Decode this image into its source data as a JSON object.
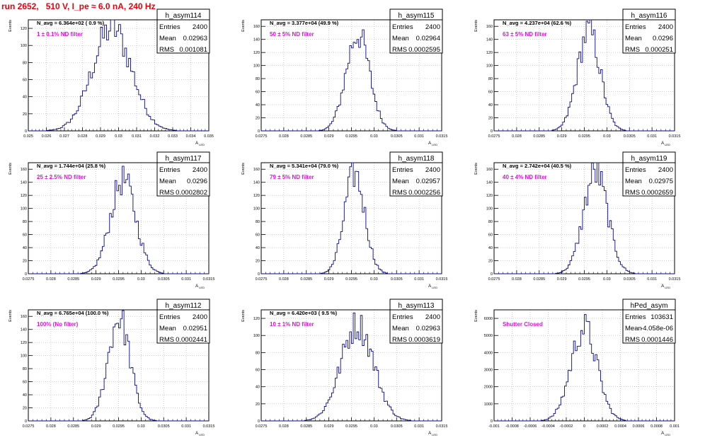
{
  "header": {
    "run_title": "run 2652,   510 V, I_pe ≈ 6.0 nA, 240 Hz"
  },
  "colors": {
    "histogram": "#08088a",
    "annotation": "#e010e0",
    "title_red": "#e8000b",
    "frame": "#000000",
    "grid": "#b0b0b0"
  },
  "stats_labels": {
    "entries": "Entries",
    "mean": "Mean",
    "rms": "RMS"
  },
  "chart_data": [
    {
      "type": "bar",
      "name": "h_asym114",
      "navg": "N_avg = 6.364e+02 ( 0.9 %)",
      "annotation": "1 ± 0.1% ND filter",
      "entries": "2400",
      "mean": "0.02963",
      "rms": "0.001081",
      "xlabel": "A_LED",
      "ylabel": "Events",
      "xlim": [
        0.025,
        0.035
      ],
      "ylim": [
        0,
        130
      ],
      "xticks": [
        0.025,
        0.026,
        0.027,
        0.028,
        0.029,
        0.03,
        0.031,
        0.032,
        0.033,
        0.034,
        0.035
      ],
      "xticklabels": [
        "0.025",
        "0.026",
        "0.027",
        "0.028",
        "0.029",
        "0.03",
        "0.031",
        "0.032",
        "0.033",
        "0.034",
        "0.035"
      ],
      "yticks": [
        0,
        20,
        40,
        60,
        80,
        100,
        120
      ],
      "yticklabels": [
        "0",
        "20",
        "40",
        "60",
        "80",
        "100",
        "120"
      ],
      "grid": true,
      "peak": 128,
      "mu": 0.02963,
      "sigma": 0.001081,
      "bins": 90
    },
    {
      "type": "bar",
      "name": "h_asym115",
      "navg": "N_avg = 3.377e+04 (49.9 %)",
      "annotation": "50 ± 5% ND filter",
      "entries": "2400",
      "mean": "0.02964",
      "rms": "0.0002595",
      "xlabel": "A_LED",
      "ylabel": "Events",
      "xlim": [
        0.0275,
        0.0315
      ],
      "ylim": [
        0,
        170
      ],
      "xticks": [
        0.0275,
        0.028,
        0.0285,
        0.029,
        0.0295,
        0.03,
        0.0305,
        0.031,
        0.0315
      ],
      "xticklabels": [
        "0.0275",
        "0.028",
        "0.0285",
        "0.029",
        "0.0295",
        "0.03",
        "0.0305",
        "0.031",
        "0.0315"
      ],
      "yticks": [
        0,
        20,
        40,
        60,
        80,
        100,
        120,
        140,
        160
      ],
      "yticklabels": [
        "0",
        "20",
        "40",
        "60",
        "80",
        "100",
        "120",
        "140",
        "160"
      ],
      "grid": true,
      "peak": 158,
      "mu": 0.02964,
      "sigma": 0.0002595,
      "bins": 100
    },
    {
      "type": "bar",
      "name": "h_asym116",
      "navg": "N_avg = 4.237e+04 (62.6 %)",
      "annotation": "63 ± 5% ND filter",
      "entries": "2400",
      "mean": "0.0296",
      "rms": "0.000251",
      "xlabel": "A_LED",
      "ylabel": "Events",
      "xlim": [
        0.0275,
        0.0315
      ],
      "ylim": [
        0,
        170
      ],
      "xticks": [
        0.0275,
        0.028,
        0.0285,
        0.029,
        0.0295,
        0.03,
        0.0305,
        0.031,
        0.0315
      ],
      "xticklabels": [
        "0.0275",
        "0.028",
        "0.0285",
        "0.029",
        "0.0295",
        "0.03",
        "0.0305",
        "0.031",
        "0.0315"
      ],
      "yticks": [
        0,
        20,
        40,
        60,
        80,
        100,
        120,
        140,
        160
      ],
      "yticklabels": [
        "0",
        "20",
        "40",
        "60",
        "80",
        "100",
        "120",
        "140",
        "160"
      ],
      "grid": true,
      "peak": 163,
      "mu": 0.0296,
      "sigma": 0.000251,
      "bins": 100
    },
    {
      "type": "bar",
      "name": "h_asym117",
      "navg": "N_avg = 1.744e+04 (25.8 %)",
      "annotation": "25 ± 2.5% ND filter",
      "entries": "2400",
      "mean": "0.0296",
      "rms": "0.0002802",
      "xlabel": "A_LED",
      "ylabel": "Events",
      "xlim": [
        0.0275,
        0.0315
      ],
      "ylim": [
        0,
        170
      ],
      "xticks": [
        0.0275,
        0.028,
        0.0285,
        0.029,
        0.0295,
        0.03,
        0.0305,
        0.031,
        0.0315
      ],
      "xticklabels": [
        "0.0275",
        "0.028",
        "0.0285",
        "0.029",
        "0.0295",
        "0.03",
        "0.0305",
        "0.031",
        "0.0315"
      ],
      "yticks": [
        0,
        20,
        40,
        60,
        80,
        100,
        120,
        140,
        160
      ],
      "yticklabels": [
        "0",
        "20",
        "40",
        "60",
        "80",
        "100",
        "120",
        "140",
        "160"
      ],
      "grid": true,
      "peak": 153,
      "mu": 0.0296,
      "sigma": 0.0002802,
      "bins": 100
    },
    {
      "type": "bar",
      "name": "h_asym118",
      "navg": "N_avg = 5.341e+04 (79.0 %)",
      "annotation": "79 ± 5% ND filter",
      "entries": "2400",
      "mean": "0.02957",
      "rms": "0.0002256",
      "xlabel": "A_LED",
      "ylabel": "Events",
      "xlim": [
        0.0275,
        0.0315
      ],
      "ylim": [
        0,
        170
      ],
      "xticks": [
        0.0275,
        0.028,
        0.0285,
        0.029,
        0.0295,
        0.03,
        0.0305,
        0.031,
        0.0315
      ],
      "xticklabels": [
        "0.0275",
        "0.028",
        "0.0285",
        "0.029",
        "0.0295",
        "0.03",
        "0.0305",
        "0.031",
        "0.0315"
      ],
      "yticks": [
        0,
        20,
        40,
        60,
        80,
        100,
        120,
        140,
        160
      ],
      "yticklabels": [
        "0",
        "20",
        "40",
        "60",
        "80",
        "100",
        "120",
        "140",
        "160"
      ],
      "grid": true,
      "peak": 163,
      "mu": 0.02957,
      "sigma": 0.0002256,
      "bins": 100
    },
    {
      "type": "bar",
      "name": "h_asym119",
      "navg": "N_avg = 2.742e+04 (40.5 %)",
      "annotation": "40 ± 4% ND filter",
      "entries": "2400",
      "mean": "0.02975",
      "rms": "0.0002659",
      "xlabel": "A_LED",
      "ylabel": "Events",
      "xlim": [
        0.0275,
        0.0315
      ],
      "ylim": [
        0,
        170
      ],
      "xticks": [
        0.0275,
        0.028,
        0.0285,
        0.029,
        0.0295,
        0.03,
        0.0305,
        0.031,
        0.0315
      ],
      "xticklabels": [
        "0.0275",
        "0.028",
        "0.0285",
        "0.029",
        "0.0295",
        "0.03",
        "0.0305",
        "0.031",
        "0.0315"
      ],
      "yticks": [
        0,
        20,
        40,
        60,
        80,
        100,
        120,
        140,
        160
      ],
      "yticklabels": [
        "0",
        "20",
        "40",
        "60",
        "80",
        "100",
        "120",
        "140",
        "160"
      ],
      "grid": true,
      "peak": 165,
      "mu": 0.02975,
      "sigma": 0.0002659,
      "bins": 100
    },
    {
      "type": "bar",
      "name": "h_asym112",
      "navg": "N_avg = 6.765e+04 (100.0 %)",
      "annotation": "100% (No filter)",
      "entries": "2400",
      "mean": "0.02951",
      "rms": "0.0002441",
      "xlabel": "A_LED",
      "ylabel": "Events",
      "xlim": [
        0.0275,
        0.0315
      ],
      "ylim": [
        0,
        170
      ],
      "xticks": [
        0.0275,
        0.028,
        0.0285,
        0.029,
        0.0295,
        0.03,
        0.0305,
        0.031,
        0.0315
      ],
      "xticklabels": [
        "0.0275",
        "0.028",
        "0.0285",
        "0.029",
        "0.0295",
        "0.03",
        "0.0305",
        "0.031",
        "0.0315"
      ],
      "yticks": [
        0,
        20,
        40,
        60,
        80,
        100,
        120,
        140,
        160
      ],
      "yticklabels": [
        "0",
        "20",
        "40",
        "60",
        "80",
        "100",
        "120",
        "140",
        "160"
      ],
      "grid": true,
      "peak": 168,
      "mu": 0.02951,
      "sigma": 0.0002441,
      "bins": 100
    },
    {
      "type": "bar",
      "name": "h_asym113",
      "navg": "N_avg = 6.420e+03 ( 9.5 %)",
      "annotation": "10 ± 1% ND filter",
      "entries": "2400",
      "mean": "0.02963",
      "rms": "0.0003619",
      "xlabel": "A_LED",
      "ylabel": "Events",
      "xlim": [
        0.0275,
        0.0315
      ],
      "ylim": [
        0,
        130
      ],
      "xticks": [
        0.0275,
        0.028,
        0.0285,
        0.029,
        0.0295,
        0.03,
        0.0305,
        0.031,
        0.0315
      ],
      "xticklabels": [
        "0.0275",
        "0.028",
        "0.0285",
        "0.029",
        "0.0295",
        "0.03",
        "0.0305",
        "0.031",
        "0.0315"
      ],
      "yticks": [
        0,
        20,
        40,
        60,
        80,
        100,
        120
      ],
      "yticklabels": [
        "0",
        "20",
        "40",
        "60",
        "80",
        "100",
        "120"
      ],
      "grid": true,
      "peak": 120,
      "mu": 0.02963,
      "sigma": 0.0003619,
      "bins": 100
    },
    {
      "type": "bar",
      "name": "hPed_asym",
      "navg": "",
      "annotation": "Shutter Closed",
      "entries": "103631",
      "mean": "-4.058e-06",
      "rms": "0.0001446",
      "xlabel": "A_LED",
      "ylabel": "Events",
      "xlim": [
        -0.001,
        0.001
      ],
      "ylim": [
        0,
        6500
      ],
      "xticks": [
        -0.001,
        -0.0008,
        -0.0006,
        -0.0004,
        -0.0002,
        0,
        0.0002,
        0.0004,
        0.0006,
        0.0008,
        0.001
      ],
      "xticklabels": [
        "-0.001",
        "-0.0008",
        "-0.0006",
        "-0.0004",
        "-0.0002",
        "0",
        "0.0002",
        "0.0004",
        "0.0006",
        "0.0008",
        "0.001"
      ],
      "yticks": [
        0,
        1000,
        2000,
        3000,
        4000,
        5000,
        6000
      ],
      "yticklabels": [
        "0",
        "1000",
        "2000",
        "3000",
        "4000",
        "5000",
        "6000"
      ],
      "grid": true,
      "peak": 5800,
      "mu": -4.058e-06,
      "sigma": 0.0001446,
      "bins": 100
    }
  ]
}
